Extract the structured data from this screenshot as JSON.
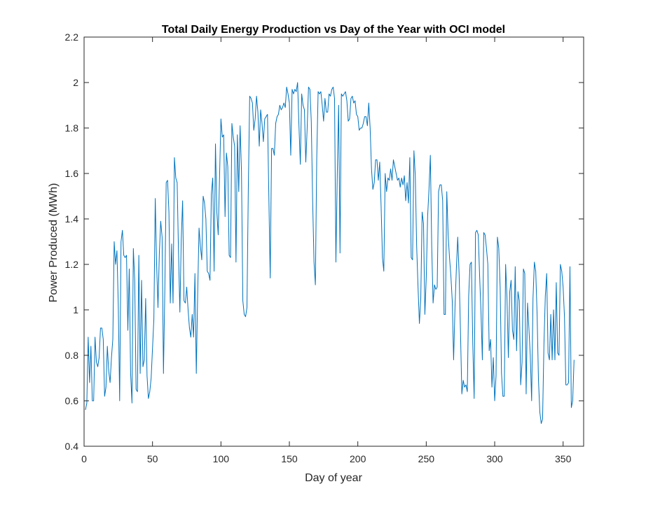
{
  "chart_data": {
    "type": "line",
    "title": "Total Daily Energy Production vs Day of the Year with OCI model",
    "xlabel": "Day of year",
    "ylabel": "Power Produced (MWh)",
    "xlim": [
      0,
      365
    ],
    "ylim": [
      0.4,
      2.2
    ],
    "xticks": [
      0,
      50,
      100,
      150,
      200,
      250,
      300,
      350
    ],
    "yticks": [
      0.4,
      0.6,
      0.8,
      1,
      1.2,
      1.4,
      1.6,
      1.8,
      2,
      2.2
    ],
    "xtick_labels": [
      "0",
      "50",
      "100",
      "150",
      "200",
      "250",
      "300",
      "350"
    ],
    "ytick_labels": [
      "0.4",
      "0.6",
      "0.8",
      "1",
      "1.2",
      "1.4",
      "1.6",
      "1.8",
      "2",
      "2.2"
    ],
    "grid": false,
    "line_color": "#0072BD",
    "series": [
      {
        "values": [
          0.56,
          0.59,
          0.88,
          0.68,
          0.84,
          0.6,
          0.6,
          0.88,
          0.77,
          0.75,
          0.79,
          0.92,
          0.92,
          0.87,
          0.62,
          0.66,
          0.84,
          0.73,
          0.68,
          0.79,
          0.87,
          1.3,
          1.2,
          1.26,
          1.02,
          0.6,
          1.3,
          1.35,
          1.24,
          1.23,
          1.24,
          0.91,
          1.18,
          0.72,
          0.59,
          1.27,
          1.13,
          0.65,
          0.64,
          1.24,
          0.72,
          1.13,
          0.75,
          0.78,
          1.05,
          0.71,
          0.61,
          0.64,
          0.7,
          0.83,
          0.96,
          1.49,
          1.2,
          1.01,
          1.25,
          1.39,
          1.32,
          0.72,
          1.09,
          1.56,
          1.57,
          1.43,
          1.03,
          1.29,
          1.03,
          1.67,
          1.58,
          1.56,
          1.25,
          0.99,
          1.31,
          1.48,
          1.04,
          1.03,
          1.1,
          1.0,
          0.92,
          0.88,
          0.98,
          0.88,
          1.16,
          0.72,
          1.07,
          1.36,
          1.28,
          1.22,
          1.5,
          1.47,
          1.4,
          1.17,
          1.16,
          1.13,
          1.51,
          1.58,
          1.17,
          1.73,
          1.43,
          1.33,
          1.59,
          1.84,
          1.76,
          1.77,
          1.41,
          1.69,
          1.63,
          1.24,
          1.23,
          1.82,
          1.76,
          1.72,
          1.21,
          1.77,
          1.52,
          1.81,
          1.61,
          1.04,
          0.98,
          0.97,
          1.01,
          1.53,
          1.94,
          1.93,
          1.91,
          1.79,
          1.84,
          1.94,
          1.87,
          1.72,
          1.88,
          1.82,
          1.74,
          1.84,
          1.85,
          1.86,
          1.5,
          1.14,
          1.71,
          1.71,
          1.68,
          1.82,
          1.85,
          1.86,
          1.9,
          1.88,
          1.89,
          1.91,
          1.89,
          1.98,
          1.95,
          1.91,
          1.68,
          1.97,
          1.95,
          1.97,
          1.96,
          2.0,
          1.81,
          1.64,
          1.95,
          1.9,
          1.88,
          1.65,
          1.8,
          1.98,
          1.97,
          1.83,
          1.48,
          1.21,
          1.11,
          1.67,
          1.96,
          1.95,
          1.96,
          1.9,
          1.83,
          1.93,
          1.87,
          1.87,
          1.95,
          1.94,
          1.97,
          1.98,
          1.93,
          1.21,
          1.6,
          1.9,
          1.25,
          1.95,
          1.94,
          1.95,
          1.96,
          1.92,
          1.83,
          1.84,
          1.93,
          1.94,
          1.91,
          1.92,
          1.86,
          1.85,
          1.79,
          1.8,
          1.8,
          1.82,
          1.85,
          1.85,
          1.81,
          1.91,
          1.8,
          1.62,
          1.53,
          1.56,
          1.66,
          1.66,
          1.57,
          1.65,
          1.46,
          1.23,
          1.17,
          1.6,
          1.52,
          1.58,
          1.57,
          1.62,
          1.57,
          1.66,
          1.63,
          1.6,
          1.57,
          1.58,
          1.54,
          1.58,
          1.55,
          1.59,
          1.48,
          1.56,
          1.47,
          1.67,
          1.23,
          1.22,
          1.7,
          1.59,
          1.28,
          1.1,
          0.94,
          1.05,
          1.43,
          1.38,
          0.98,
          1.14,
          1.41,
          1.53,
          1.68,
          1.28,
          1.03,
          1.11,
          1.09,
          1.1,
          1.52,
          1.55,
          1.55,
          1.48,
          0.98,
          0.98,
          1.52,
          1.33,
          1.23,
          1.15,
          1.04,
          0.78,
          1.01,
          1.18,
          1.32,
          1.16,
          0.91,
          0.63,
          0.69,
          0.66,
          0.67,
          0.64,
          1.06,
          1.2,
          1.21,
          0.85,
          0.61,
          1.34,
          1.35,
          1.33,
          1.15,
          0.99,
          0.78,
          1.34,
          1.33,
          1.27,
          1.2,
          0.82,
          0.87,
          0.66,
          0.79,
          0.6,
          0.71,
          1.32,
          1.27,
          1.1,
          0.72,
          0.62,
          0.62,
          1.2,
          1.05,
          0.79,
          1.08,
          1.13,
          0.91,
          0.87,
          1.19,
          0.82,
          1.08,
          1.04,
          0.67,
          0.77,
          1.18,
          1.16,
          0.63,
          1.03,
          0.92,
          0.8,
          0.6,
          1.05,
          1.21,
          1.17,
          0.98,
          0.69,
          0.55,
          0.5,
          0.52,
          0.85,
          1.06,
          1.16,
          0.81,
          0.78,
          0.98,
          0.78,
          1.0,
          0.78,
          1.12,
          0.81,
          0.8,
          1.2,
          1.17,
          1.1,
          0.97,
          0.67,
          0.67,
          0.68,
          1.19,
          0.57,
          0.6,
          0.78
        ]
      }
    ]
  }
}
